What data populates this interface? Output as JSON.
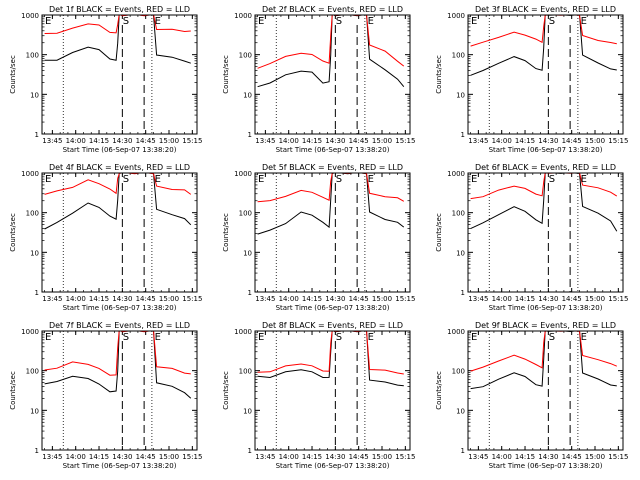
{
  "colors": {
    "events": "#000000",
    "lld": "#ff0000",
    "background": "#ffffff"
  },
  "chart_data": [
    {
      "type": "line",
      "title": "Det 1f BLACK = Events, RED = LLD",
      "ylabel": "Counts/sec",
      "xlabel": "Start Time (06-Sep-07 13:38:20)",
      "yscale": "log",
      "ylim": [
        1,
        1000
      ],
      "yticks": [
        "1",
        "10",
        "100",
        "1000"
      ],
      "xticks": [
        "13:45",
        "14:00",
        "14:15",
        "14:30",
        "14:45",
        "15:00",
        "15:15"
      ],
      "markers": [
        "E",
        "S",
        "E"
      ],
      "series": [
        {
          "name": "Events",
          "color": "#000000",
          "x": [
            "13:40",
            "13:48",
            "13:58",
            "14:08",
            "14:15",
            "14:22",
            "14:26",
            "14:27",
            "14:28",
            "14:30",
            "14:38",
            "14:44",
            "14:50",
            "14:52",
            "15:02",
            "15:10",
            "15:14"
          ],
          "values": [
            70,
            75,
            110,
            160,
            130,
            80,
            70,
            200,
            1000,
            1000,
            1000,
            1000,
            1000,
            100,
            85,
            70,
            60
          ]
        },
        {
          "name": "LLD",
          "color": "#ff0000",
          "x": [
            "13:40",
            "13:48",
            "13:58",
            "14:08",
            "14:15",
            "14:22",
            "14:26",
            "14:27",
            "14:28",
            "14:30",
            "14:38",
            "14:44",
            "14:50",
            "14:52",
            "15:02",
            "15:10",
            "15:14"
          ],
          "values": [
            330,
            360,
            450,
            620,
            540,
            380,
            340,
            600,
            1000,
            1000,
            1000,
            1000,
            1000,
            450,
            420,
            400,
            380
          ]
        }
      ]
    },
    {
      "type": "line",
      "title": "Det 2f BLACK = Events, RED = LLD",
      "ylabel": "Counts/sec",
      "xlabel": "Start Time (06-Sep-07 13:38:20)",
      "yscale": "log",
      "ylim": [
        1,
        1000
      ],
      "yticks": [
        "1",
        "10",
        "100",
        "1000"
      ],
      "xticks": [
        "13:45",
        "14:00",
        "14:15",
        "14:30",
        "14:45",
        "15:00",
        "15:15"
      ],
      "markers": [
        "E",
        "S",
        "E"
      ],
      "series": [
        {
          "name": "Events",
          "color": "#000000",
          "x": [
            "13:40",
            "13:48",
            "13:58",
            "14:08",
            "14:15",
            "14:22",
            "14:26",
            "14:27",
            "14:28",
            "14:30",
            "14:38",
            "14:44",
            "14:50",
            "14:52",
            "15:02",
            "15:10",
            "15:14"
          ],
          "values": [
            15,
            20,
            30,
            40,
            35,
            20,
            20,
            100,
            1000,
            1000,
            1000,
            1000,
            1000,
            80,
            40,
            25,
            15
          ]
        },
        {
          "name": "LLD",
          "color": "#ff0000",
          "x": [
            "13:40",
            "13:48",
            "13:58",
            "14:08",
            "14:15",
            "14:22",
            "14:26",
            "14:27",
            "14:28",
            "14:30",
            "14:38",
            "14:44",
            "14:50",
            "14:52",
            "15:02",
            "15:10",
            "15:14"
          ],
          "values": [
            45,
            60,
            90,
            110,
            100,
            70,
            60,
            300,
            1000,
            1000,
            1000,
            1000,
            1000,
            180,
            120,
            70,
            50
          ]
        }
      ]
    },
    {
      "type": "line",
      "title": "Det 3f BLACK = Events, RED = LLD",
      "ylabel": "Counts/sec",
      "xlabel": "Start Time (06-Sep-07 13:38:20)",
      "yscale": "log",
      "ylim": [
        1,
        1000
      ],
      "yticks": [
        "1",
        "10",
        "100",
        "1000"
      ],
      "xticks": [
        "13:45",
        "14:00",
        "14:15",
        "14:30",
        "14:45",
        "15:00",
        "15:15"
      ],
      "markers": [
        "E",
        "S",
        "E"
      ],
      "series": [
        {
          "name": "Events",
          "color": "#000000",
          "x": [
            "13:40",
            "13:48",
            "13:58",
            "14:08",
            "14:15",
            "14:22",
            "14:26",
            "14:27",
            "14:28",
            "14:30",
            "14:38",
            "14:44",
            "14:50",
            "14:52",
            "15:02",
            "15:10",
            "15:14"
          ],
          "values": [
            30,
            40,
            60,
            90,
            70,
            45,
            40,
            150,
            1000,
            1000,
            1000,
            1000,
            1000,
            100,
            60,
            45,
            40
          ]
        },
        {
          "name": "LLD",
          "color": "#ff0000",
          "x": [
            "13:40",
            "13:48",
            "13:58",
            "14:08",
            "14:15",
            "14:22",
            "14:26",
            "14:27",
            "14:28",
            "14:30",
            "14:38",
            "14:44",
            "14:50",
            "14:52",
            "15:02",
            "15:10",
            "15:14"
          ],
          "values": [
            170,
            200,
            280,
            360,
            320,
            240,
            210,
            500,
            1000,
            1000,
            1000,
            1000,
            1000,
            300,
            230,
            200,
            190
          ]
        }
      ]
    },
    {
      "type": "line",
      "title": "Det 4f BLACK = Events, RED = LLD",
      "ylabel": "Counts/sec",
      "xlabel": "Start Time (06-Sep-07 13:38:20)",
      "yscale": "log",
      "ylim": [
        1,
        1000
      ],
      "yticks": [
        "1",
        "10",
        "100",
        "1000"
      ],
      "xticks": [
        "13:45",
        "14:00",
        "14:15",
        "14:30",
        "14:45",
        "15:00",
        "15:15"
      ],
      "markers": [
        "E",
        "S",
        "E"
      ],
      "series": [
        {
          "name": "Events",
          "color": "#000000",
          "x": [
            "13:40",
            "13:48",
            "13:58",
            "14:08",
            "14:15",
            "14:22",
            "14:26",
            "14:27",
            "14:28",
            "14:30",
            "14:38",
            "14:44",
            "14:50",
            "14:52",
            "15:02",
            "15:10",
            "15:14"
          ],
          "values": [
            40,
            55,
            100,
            170,
            140,
            80,
            70,
            200,
            1000,
            1000,
            1000,
            1000,
            1000,
            120,
            90,
            70,
            50
          ]
        },
        {
          "name": "LLD",
          "color": "#ff0000",
          "x": [
            "13:40",
            "13:48",
            "13:58",
            "14:08",
            "14:15",
            "14:22",
            "14:26",
            "14:27",
            "14:28",
            "14:30",
            "14:38",
            "14:44",
            "14:50",
            "14:52",
            "15:02",
            "15:10",
            "15:14"
          ],
          "values": [
            300,
            340,
            450,
            650,
            560,
            380,
            320,
            700,
            1000,
            1000,
            1000,
            1000,
            1000,
            450,
            400,
            360,
            300
          ]
        }
      ]
    },
    {
      "type": "line",
      "title": "Det 5f BLACK = Events, RED = LLD",
      "ylabel": "Counts/sec",
      "xlabel": "Start Time (06-Sep-07 13:38:20)",
      "yscale": "log",
      "ylim": [
        1,
        1000
      ],
      "yticks": [
        "1",
        "10",
        "100",
        "1000"
      ],
      "xticks": [
        "13:45",
        "14:00",
        "14:15",
        "14:30",
        "14:45",
        "15:00",
        "15:15"
      ],
      "markers": [
        "E",
        "S",
        "E"
      ],
      "series": [
        {
          "name": "Events",
          "color": "#000000",
          "x": [
            "13:40",
            "13:48",
            "13:58",
            "14:08",
            "14:15",
            "14:22",
            "14:26",
            "14:27",
            "14:28",
            "14:30",
            "14:38",
            "14:44",
            "14:50",
            "14:52",
            "15:02",
            "15:10",
            "15:14"
          ],
          "values": [
            30,
            35,
            55,
            100,
            90,
            55,
            45,
            200,
            1000,
            1000,
            1000,
            1000,
            1000,
            100,
            70,
            55,
            45
          ]
        },
        {
          "name": "LLD",
          "color": "#ff0000",
          "x": [
            "13:40",
            "13:48",
            "13:58",
            "14:08",
            "14:15",
            "14:22",
            "14:26",
            "14:27",
            "14:28",
            "14:30",
            "14:38",
            "14:44",
            "14:50",
            "14:52",
            "15:02",
            "15:10",
            "15:14"
          ],
          "values": [
            190,
            200,
            260,
            360,
            330,
            240,
            210,
            600,
            1000,
            1000,
            1000,
            1000,
            1000,
            300,
            260,
            230,
            200
          ]
        }
      ]
    },
    {
      "type": "line",
      "title": "Det 6f BLACK = Events, RED = LLD",
      "ylabel": "Counts/sec",
      "xlabel": "Start Time (06-Sep-07 13:38:20)",
      "yscale": "log",
      "ylim": [
        1,
        1000
      ],
      "yticks": [
        "1",
        "10",
        "100",
        "1000"
      ],
      "xticks": [
        "13:45",
        "14:00",
        "14:15",
        "14:30",
        "14:45",
        "15:00",
        "15:15"
      ],
      "markers": [
        "E",
        "S",
        "E"
      ],
      "series": [
        {
          "name": "Events",
          "color": "#000000",
          "x": [
            "13:40",
            "13:48",
            "13:58",
            "14:08",
            "14:15",
            "14:22",
            "14:26",
            "14:27",
            "14:28",
            "14:30",
            "14:38",
            "14:44",
            "14:50",
            "14:52",
            "15:02",
            "15:10",
            "15:14"
          ],
          "values": [
            40,
            55,
            90,
            140,
            110,
            65,
            55,
            200,
            1000,
            1000,
            1000,
            1000,
            1000,
            140,
            100,
            60,
            35
          ]
        },
        {
          "name": "LLD",
          "color": "#ff0000",
          "x": [
            "13:40",
            "13:48",
            "13:58",
            "14:08",
            "14:15",
            "14:22",
            "14:26",
            "14:27",
            "14:28",
            "14:30",
            "14:38",
            "14:44",
            "14:50",
            "14:52",
            "15:02",
            "15:10",
            "15:14"
          ],
          "values": [
            220,
            260,
            360,
            480,
            400,
            300,
            260,
            600,
            1000,
            1000,
            1000,
            1000,
            1000,
            500,
            420,
            330,
            260
          ]
        }
      ]
    },
    {
      "type": "line",
      "title": "Det 7f BLACK = Events, RED = LLD",
      "ylabel": "Counts/sec",
      "xlabel": "Start Time (06-Sep-07 13:38:20)",
      "yscale": "log",
      "ylim": [
        1,
        1000
      ],
      "yticks": [
        "1",
        "10",
        "100",
        "1000"
      ],
      "xticks": [
        "13:45",
        "14:00",
        "14:15",
        "14:30",
        "14:45",
        "15:00",
        "15:15"
      ],
      "markers": [
        "E",
        "S",
        "E"
      ],
      "series": [
        {
          "name": "Events",
          "color": "#000000",
          "x": [
            "13:40",
            "13:48",
            "13:58",
            "14:08",
            "14:15",
            "14:22",
            "14:26",
            "14:27",
            "14:28",
            "14:30",
            "14:38",
            "14:44",
            "14:50",
            "14:52",
            "15:02",
            "15:10",
            "15:14"
          ],
          "values": [
            45,
            55,
            70,
            65,
            45,
            30,
            30,
            100,
            1000,
            1000,
            1000,
            1000,
            1000,
            50,
            40,
            28,
            20
          ]
        },
        {
          "name": "LLD",
          "color": "#ff0000",
          "x": [
            "13:40",
            "13:48",
            "13:58",
            "14:08",
            "14:15",
            "14:22",
            "14:26",
            "14:27",
            "14:28",
            "14:30",
            "14:38",
            "14:44",
            "14:50",
            "14:52",
            "15:02",
            "15:10",
            "15:14"
          ],
          "values": [
            100,
            120,
            160,
            150,
            110,
            80,
            75,
            400,
            1000,
            1000,
            1000,
            1000,
            1000,
            130,
            110,
            90,
            80
          ]
        }
      ]
    },
    {
      "type": "line",
      "title": "Det 8f BLACK = Events, RED = LLD",
      "ylabel": "Counts/sec",
      "xlabel": "Start Time (06-Sep-07 13:38:20)",
      "yscale": "log",
      "ylim": [
        1,
        1000
      ],
      "yticks": [
        "1",
        "10",
        "100",
        "1000"
      ],
      "xticks": [
        "13:45",
        "14:00",
        "14:15",
        "14:30",
        "14:45",
        "15:00",
        "15:15"
      ],
      "markers": [
        "E",
        "S",
        "E"
      ],
      "series": [
        {
          "name": "Events",
          "color": "#000000",
          "x": [
            "13:40",
            "13:48",
            "13:58",
            "14:08",
            "14:15",
            "14:22",
            "14:26",
            "14:27",
            "14:28",
            "14:30",
            "14:38",
            "14:44",
            "14:50",
            "14:52",
            "15:02",
            "15:10",
            "15:14"
          ],
          "values": [
            70,
            70,
            90,
            110,
            90,
            70,
            65,
            300,
            1000,
            1000,
            1000,
            1000,
            1000,
            60,
            50,
            45,
            40
          ]
        },
        {
          "name": "LLD",
          "color": "#ff0000",
          "x": [
            "13:40",
            "13:48",
            "13:58",
            "14:08",
            "14:15",
            "14:22",
            "14:26",
            "14:27",
            "14:28",
            "14:30",
            "14:38",
            "14:44",
            "14:50",
            "14:52",
            "15:02",
            "15:10",
            "15:14"
          ],
          "values": [
            90,
            95,
            130,
            150,
            130,
            100,
            95,
            500,
            1000,
            1000,
            1000,
            1000,
            1000,
            110,
            100,
            90,
            80
          ]
        }
      ]
    },
    {
      "type": "line",
      "title": "Det 9f BLACK = Events, RED = LLD",
      "ylabel": "Counts/sec",
      "xlabel": "Start Time (06-Sep-07 13:38:20)",
      "yscale": "log",
      "ylim": [
        1,
        1000
      ],
      "yticks": [
        "1",
        "10",
        "100",
        "1000"
      ],
      "xticks": [
        "13:45",
        "14:00",
        "14:15",
        "14:30",
        "14:45",
        "15:00",
        "15:15"
      ],
      "markers": [
        "E",
        "S",
        "E"
      ],
      "series": [
        {
          "name": "Events",
          "color": "#000000",
          "x": [
            "13:40",
            "13:48",
            "13:58",
            "14:08",
            "14:15",
            "14:22",
            "14:26",
            "14:27",
            "14:28",
            "14:30",
            "14:38",
            "14:44",
            "14:50",
            "14:52",
            "15:02",
            "15:10",
            "15:14"
          ],
          "values": [
            35,
            40,
            60,
            90,
            70,
            45,
            40,
            200,
            1000,
            1000,
            1000,
            1000,
            1000,
            90,
            60,
            45,
            40
          ]
        },
        {
          "name": "LLD",
          "color": "#ff0000",
          "x": [
            "13:40",
            "13:48",
            "13:58",
            "14:08",
            "14:15",
            "14:22",
            "14:26",
            "14:27",
            "14:28",
            "14:30",
            "14:38",
            "14:44",
            "14:50",
            "14:52",
            "15:02",
            "15:10",
            "15:14"
          ],
          "values": [
            100,
            120,
            180,
            240,
            200,
            140,
            120,
            500,
            1000,
            1000,
            1000,
            1000,
            1000,
            240,
            190,
            150,
            130
          ]
        }
      ]
    }
  ]
}
